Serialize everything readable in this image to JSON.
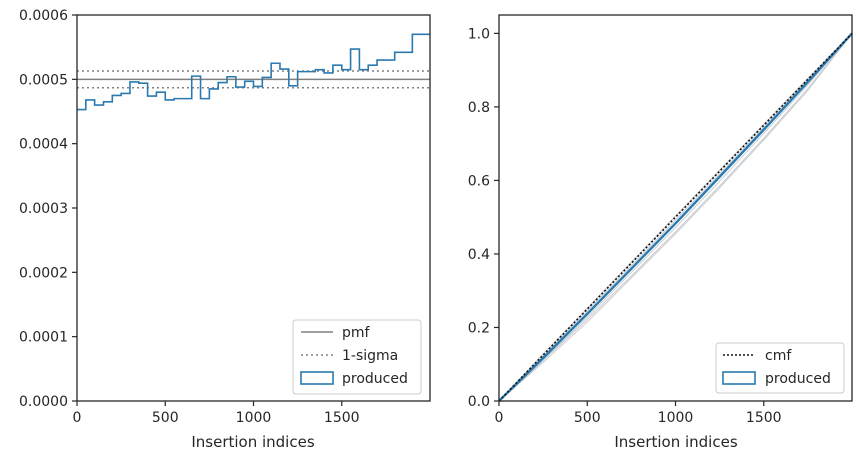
{
  "colors": {
    "produced": "#2a7ab0",
    "pmf": "#808080",
    "sigma": "#808080",
    "cmf": "#111111",
    "faint": "#c8ccd0",
    "axes": "#262626"
  },
  "chart_data": [
    {
      "type": "line",
      "xlabel": "Insertion indices",
      "ylabel": "",
      "xlim": [
        0,
        2000
      ],
      "ylim": [
        0,
        0.0006
      ],
      "xticks": [
        0,
        500,
        1000,
        1500
      ],
      "xtick_labels": [
        "0",
        "500",
        "1000",
        "1500"
      ],
      "yticks": [
        0,
        0.0001,
        0.0002,
        0.0003,
        0.0004,
        0.0005,
        0.0006
      ],
      "ytick_labels": [
        "0.0000",
        "0.0001",
        "0.0002",
        "0.0003",
        "0.0004",
        "0.0005",
        "0.0006"
      ],
      "legend_position": "lower-right",
      "legend": [
        "pmf",
        "1-sigma",
        "produced"
      ],
      "pmf": 0.0005,
      "sigma_band": [
        0.000487,
        0.000513
      ],
      "bin_edges": [
        0,
        50,
        100,
        150,
        200,
        250,
        300,
        350,
        400,
        450,
        500,
        550,
        600,
        650,
        700,
        750,
        800,
        850,
        900,
        950,
        1000,
        1050,
        1100,
        1150,
        1200,
        1250,
        1300,
        1350,
        1400,
        1450,
        1500,
        1550,
        1600,
        1650,
        1700,
        1750,
        1800,
        1850,
        1900,
        1950,
        2000
      ],
      "produced": [
        0.000453,
        0.000468,
        0.00046,
        0.000465,
        0.000475,
        0.000478,
        0.000496,
        0.000494,
        0.000474,
        0.00048,
        0.000468,
        0.00047,
        0.00047,
        0.000505,
        0.00047,
        0.000485,
        0.000495,
        0.000504,
        0.000488,
        0.000497,
        0.000489,
        0.000503,
        0.000525,
        0.000516,
        0.00049,
        0.000512,
        0.000512,
        0.000515,
        0.00051,
        0.000522,
        0.000515,
        0.000547,
        0.000515,
        0.000522,
        0.00053,
        0.00053,
        0.000542,
        0.000542,
        0.00057,
        0.00057
      ]
    },
    {
      "type": "line",
      "xlabel": "Insertion indices",
      "ylabel": "",
      "xlim": [
        0,
        2000
      ],
      "ylim": [
        0,
        1.05
      ],
      "xticks": [
        0,
        500,
        1000,
        1500
      ],
      "xtick_labels": [
        "0",
        "500",
        "1000",
        "1500"
      ],
      "yticks": [
        0,
        0.2,
        0.4,
        0.6,
        0.8,
        1.0
      ],
      "ytick_labels": [
        "0.0",
        "0.2",
        "0.4",
        "0.6",
        "0.8",
        "1.0"
      ],
      "legend_position": "lower-right",
      "legend": [
        "cmf",
        "produced"
      ],
      "x": [
        0,
        250,
        500,
        750,
        1000,
        1250,
        1500,
        1750,
        2000
      ],
      "cmf": [
        0,
        0.125,
        0.25,
        0.375,
        0.5,
        0.625,
        0.75,
        0.875,
        1.0
      ],
      "produced": [
        0,
        0.117,
        0.237,
        0.36,
        0.483,
        0.61,
        0.738,
        0.868,
        1.0
      ],
      "faint_curves": [
        [
          0,
          0.105,
          0.215,
          0.335,
          0.455,
          0.58,
          0.71,
          0.845,
          1.0
        ],
        [
          0,
          0.112,
          0.228,
          0.35,
          0.472,
          0.598,
          0.728,
          0.86,
          1.0
        ],
        [
          0,
          0.122,
          0.245,
          0.368,
          0.492,
          0.618,
          0.745,
          0.874,
          1.0
        ],
        [
          0,
          0.128,
          0.252,
          0.378,
          0.503,
          0.628,
          0.753,
          0.878,
          1.0
        ],
        [
          0,
          0.11,
          0.222,
          0.34,
          0.46,
          0.585,
          0.715,
          0.85,
          1.0
        ]
      ]
    }
  ]
}
